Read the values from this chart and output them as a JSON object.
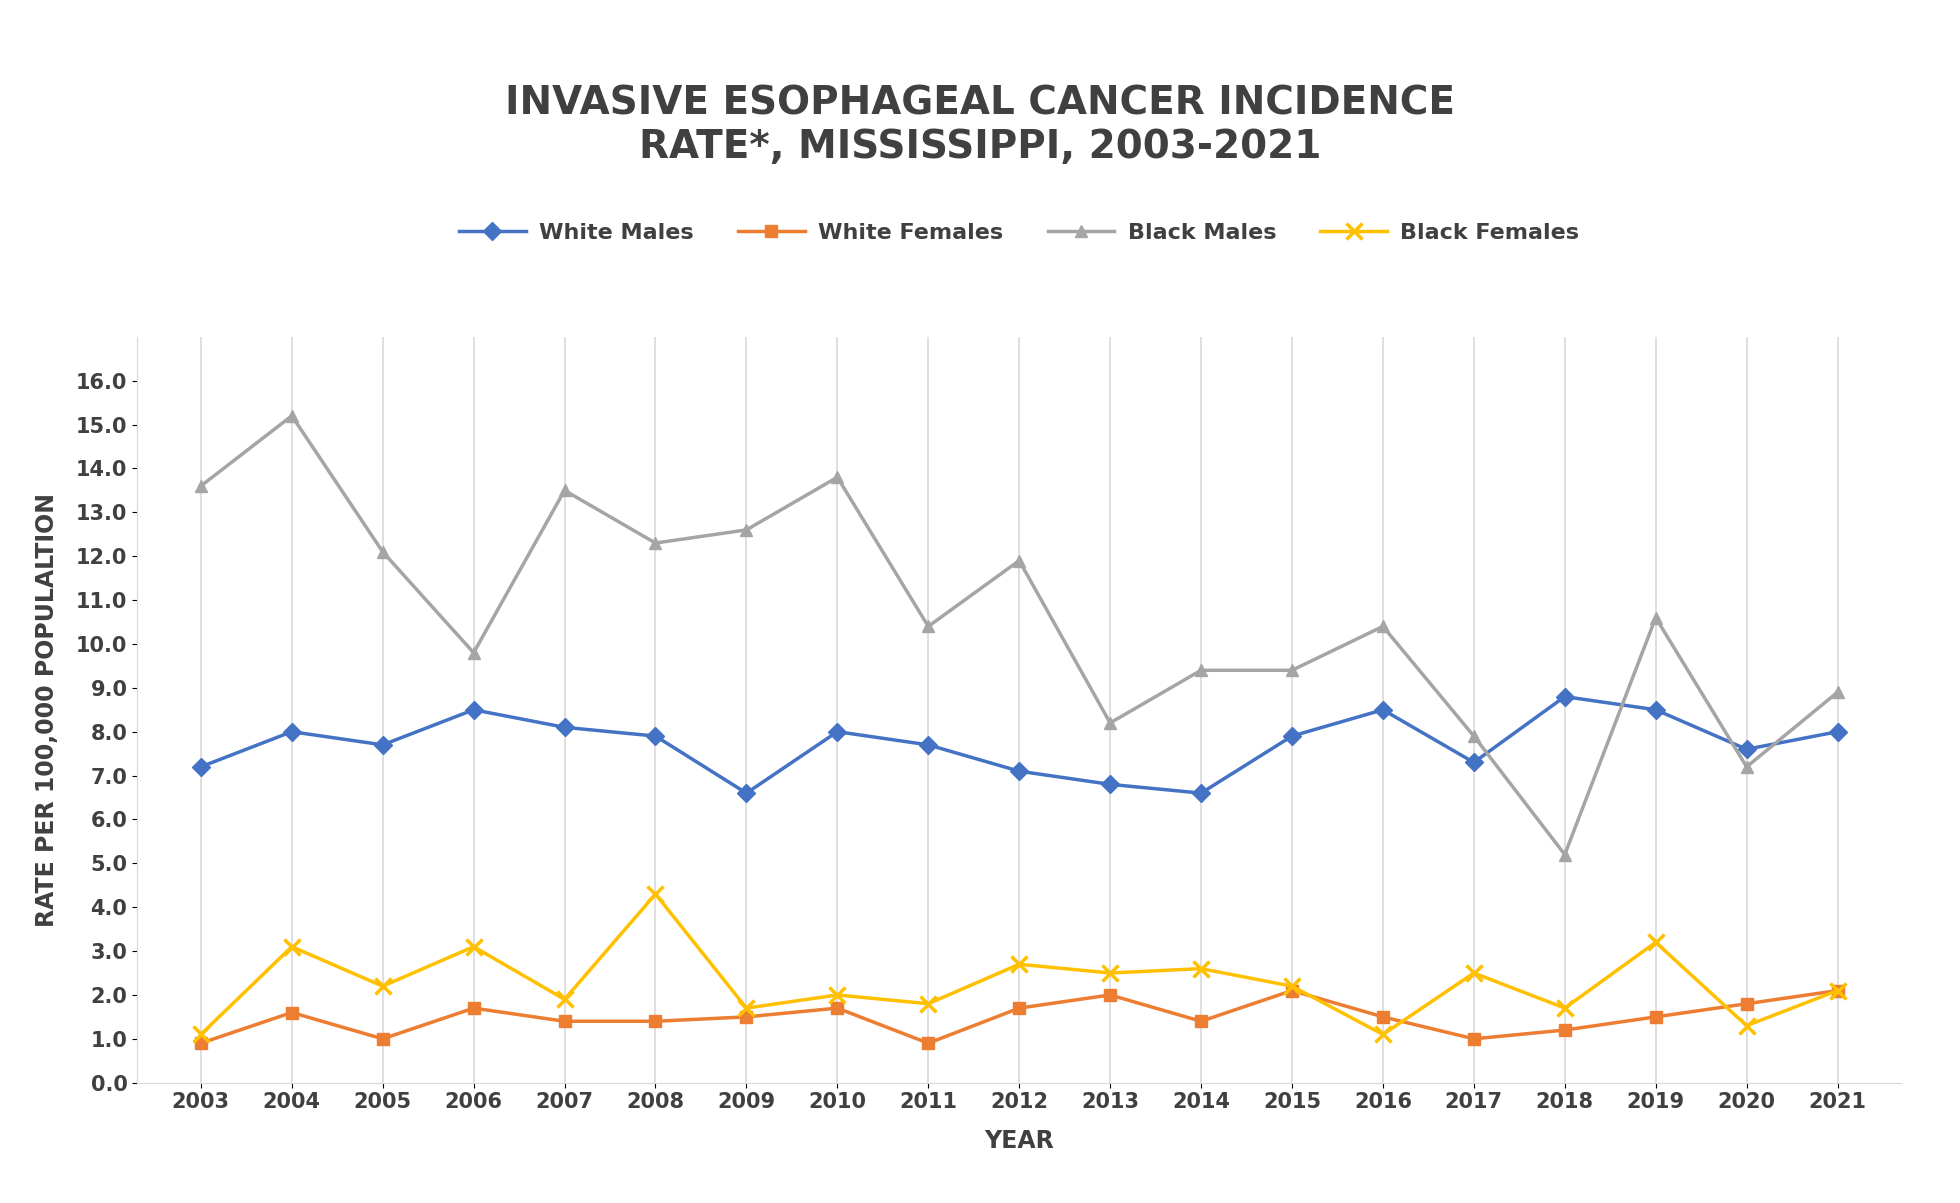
{
  "title": "INVASIVE ESOPHAGEAL CANCER INCIDENCE\nRATE*, MISSISSIPPI, 2003-2021",
  "xlabel": "YEAR",
  "ylabel": "RATE PER 100,000 POPULALTION",
  "years": [
    2003,
    2004,
    2005,
    2006,
    2007,
    2008,
    2009,
    2010,
    2011,
    2012,
    2013,
    2014,
    2015,
    2016,
    2017,
    2018,
    2019,
    2020,
    2021
  ],
  "white_males": [
    7.2,
    8.0,
    7.7,
    8.5,
    8.1,
    7.9,
    6.6,
    8.0,
    7.7,
    7.1,
    6.8,
    6.6,
    7.9,
    8.5,
    7.3,
    8.8,
    8.5,
    7.6,
    8.0
  ],
  "white_females": [
    0.9,
    1.6,
    1.0,
    1.7,
    1.4,
    1.4,
    1.5,
    1.7,
    0.9,
    1.7,
    2.0,
    1.4,
    2.1,
    1.5,
    1.0,
    1.2,
    1.5,
    1.8,
    2.1
  ],
  "black_males": [
    13.6,
    15.2,
    12.1,
    9.8,
    13.5,
    12.3,
    12.6,
    13.8,
    10.4,
    11.9,
    8.2,
    9.4,
    9.4,
    10.4,
    7.9,
    5.2,
    10.6,
    7.2,
    8.9
  ],
  "black_females": [
    1.1,
    3.1,
    2.2,
    3.1,
    1.9,
    4.3,
    1.7,
    2.0,
    1.8,
    2.7,
    2.5,
    2.6,
    2.2,
    1.1,
    2.5,
    1.7,
    3.2,
    1.3,
    2.1
  ],
  "white_males_color": "#4472C4",
  "white_females_color": "#ED7D31",
  "black_males_color": "#A5A5A5",
  "black_females_color": "#FFC000",
  "background_color": "#FFFFFF",
  "grid_color": "#D9D9D9",
  "ylim": [
    0.0,
    17.0
  ],
  "yticks": [
    0.0,
    1.0,
    2.0,
    3.0,
    4.0,
    5.0,
    6.0,
    7.0,
    8.0,
    9.0,
    10.0,
    11.0,
    12.0,
    13.0,
    14.0,
    15.0,
    16.0
  ],
  "title_fontsize": 28,
  "axis_label_fontsize": 17,
  "tick_fontsize": 15,
  "legend_fontsize": 16,
  "linewidth": 2.5,
  "markersize": 9
}
